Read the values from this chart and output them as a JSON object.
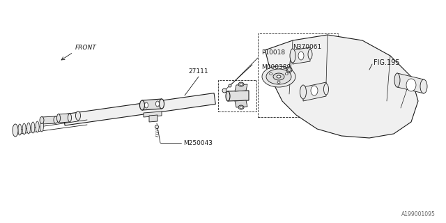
{
  "bg_color": "#ffffff",
  "line_color": "#1a1a1a",
  "labels": {
    "front": "FRONT",
    "part_27111": "27111",
    "part_M250043": "M250043",
    "part_P10018": "P10018",
    "part_M000389": "M000389",
    "part_FIG195": "FIG.195",
    "part_N370061": "N370061",
    "watermark": "A199001095"
  },
  "fig_width": 6.4,
  "fig_height": 3.2,
  "dpi": 100
}
